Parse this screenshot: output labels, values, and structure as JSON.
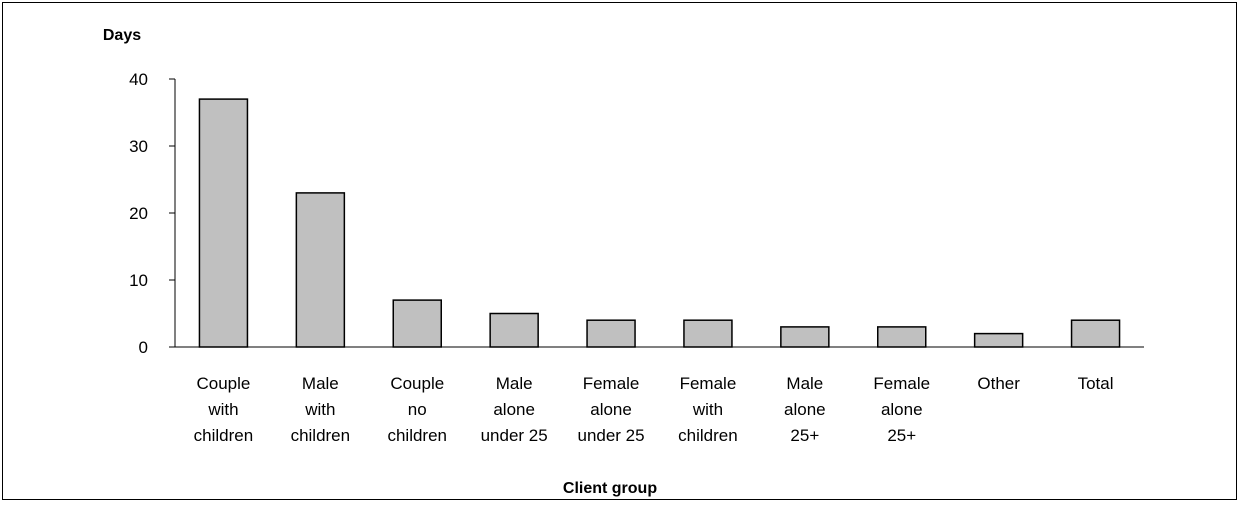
{
  "chart_data": {
    "type": "bar",
    "ylabel": "Days",
    "xlabel": "Client group",
    "categories": [
      [
        "Couple",
        "with",
        "children"
      ],
      [
        "Male",
        "with",
        "children"
      ],
      [
        "Couple",
        "no",
        "children"
      ],
      [
        "Male",
        "alone",
        "under 25"
      ],
      [
        "Female",
        "alone",
        "under 25"
      ],
      [
        "Female",
        "with",
        "children"
      ],
      [
        "Male",
        "alone",
        "25+"
      ],
      [
        "Female",
        "alone",
        "25+"
      ],
      [
        "Other"
      ],
      [
        "Total"
      ]
    ],
    "values": [
      37,
      23,
      7,
      5,
      4,
      4,
      3,
      3,
      2,
      4
    ],
    "ylim": [
      0,
      40
    ],
    "yticks": [
      0,
      10,
      20,
      30,
      40
    ],
    "grid": false,
    "bar_color": "#c0c0c0",
    "bar_edge_color": "#000000"
  }
}
